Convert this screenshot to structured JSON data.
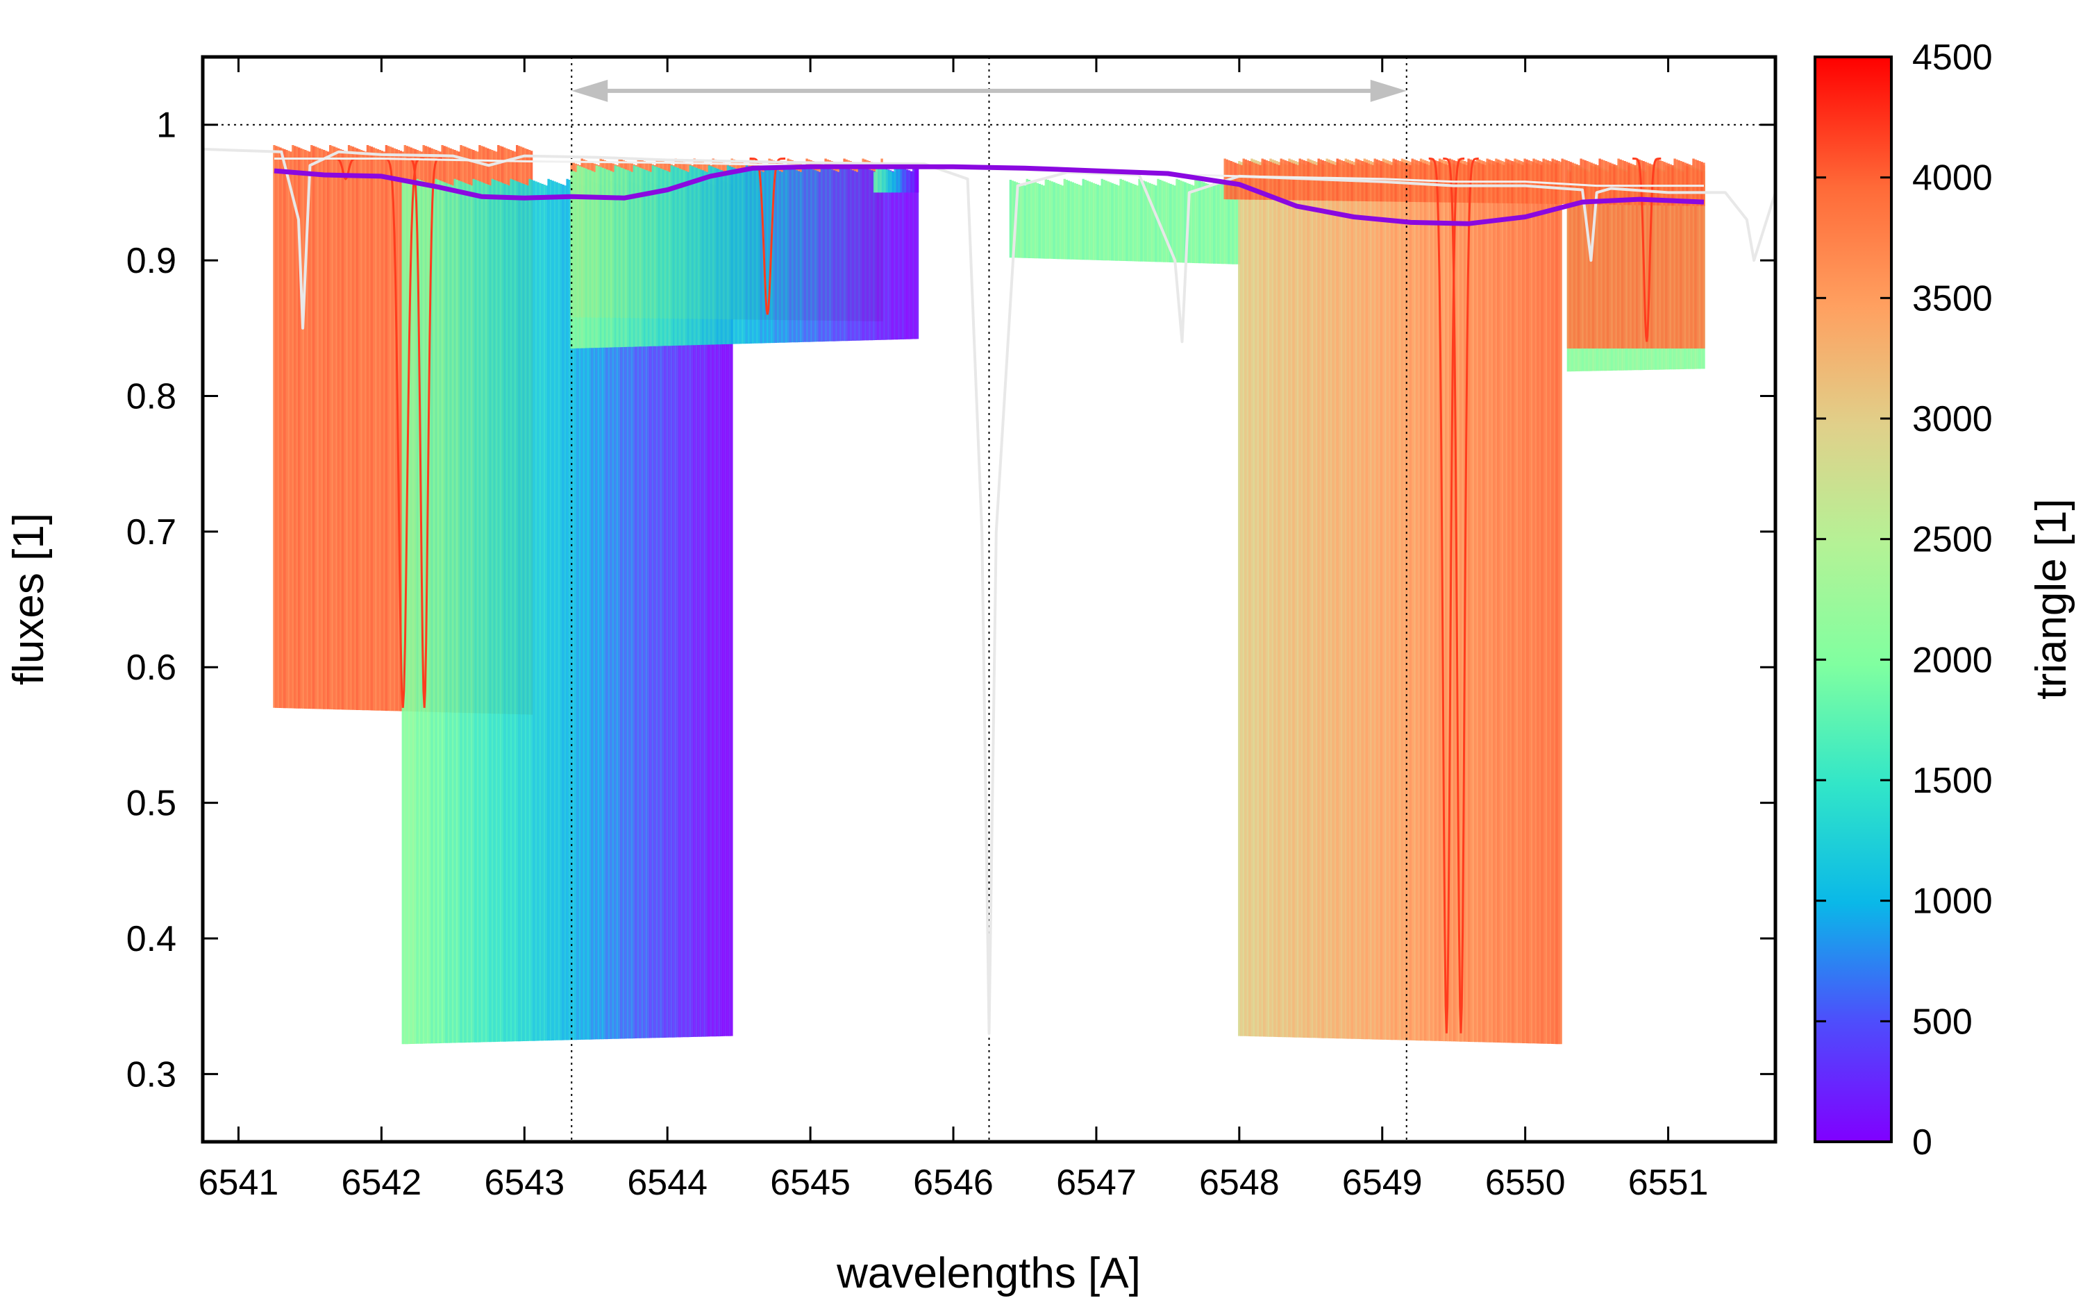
{
  "chart_data": {
    "type": "line",
    "xlabel": "wavelengths [A]",
    "ylabel": "fluxes [1]",
    "colorbar_label": "triangle [1]",
    "xlim": [
      6540.75,
      6551.75
    ],
    "ylim": [
      0.25,
      1.05
    ],
    "x_ticks": [
      6541,
      6542,
      6543,
      6544,
      6545,
      6546,
      6547,
      6548,
      6549,
      6550,
      6551
    ],
    "y_ticks": [
      0.3,
      0.4,
      0.5,
      0.6,
      0.7,
      0.8,
      0.9,
      1
    ],
    "colorbar_range": [
      0,
      4500
    ],
    "colorbar_ticks": [
      0,
      500,
      1000,
      1500,
      2000,
      2500,
      3000,
      3500,
      4000,
      4500
    ],
    "colormap": "rainbow",
    "grid": false,
    "legend": "none",
    "colors": {
      "model_red": "#ff3c1e",
      "model_orange": "#ff7840",
      "model_green": "#80ffa0",
      "mean_line": "#8a08e0",
      "observed": "#e8e8e8",
      "arrow": "#c0c0c0"
    },
    "reference_lines": {
      "horizontal_y": 1.0,
      "vertical_x": [
        6543.33,
        6546.25,
        6549.17
      ]
    },
    "range_arrow": {
      "from": 6543.33,
      "to": 6549.17,
      "y": 1.025
    },
    "blocks": [
      {
        "x0": 6541.25,
        "x1": 6543.05,
        "y_top": 0.985,
        "y_bottom": 0.57,
        "y_end": 0.565,
        "triangle_start": 3900,
        "triangle_end": 3900
      },
      {
        "x0": 6542.15,
        "x1": 6544.45,
        "y_top": 0.96,
        "y_bottom": 0.322,
        "y_end": 0.328,
        "triangle_start": 2100,
        "triangle_end": 0
      },
      {
        "x0": 6543.33,
        "x1": 6545.5,
        "y_top": 0.975,
        "y_bottom": 0.858,
        "y_end": 0.855,
        "triangle_start": 3800,
        "triangle_end": 3800
      },
      {
        "x0": 6543.33,
        "x1": 6545.75,
        "y_top": 0.97,
        "y_bottom": 0.835,
        "y_end": 0.842,
        "triangle_start": 2100,
        "triangle_end": 0
      },
      {
        "x0": 6545.45,
        "x1": 6545.75,
        "y_top": 0.97,
        "y_bottom": 0.95,
        "y_end": 0.95,
        "triangle_start": 1900,
        "triangle_end": 0
      },
      {
        "x0": 6546.4,
        "x1": 6548.0,
        "y_top": 0.96,
        "y_bottom": 0.902,
        "y_end": 0.897,
        "triangle_start": 2000,
        "triangle_end": 2000
      },
      {
        "x0": 6548.0,
        "x1": 6550.25,
        "y_top": 0.975,
        "y_bottom": 0.328,
        "y_end": 0.322,
        "triangle_start": 3000,
        "triangle_end": 3900
      },
      {
        "x0": 6550.3,
        "x1": 6551.25,
        "y_top": 0.97,
        "y_bottom": 0.818,
        "y_end": 0.82,
        "triangle_start": 2100,
        "triangle_end": 2100
      },
      {
        "x0": 6550.3,
        "x1": 6551.25,
        "y_top": 0.97,
        "y_bottom": 0.835,
        "y_end": 0.835,
        "triangle_start": 3800,
        "triangle_end": 3800
      },
      {
        "x0": 6547.9,
        "x1": 6551.25,
        "y_top": 0.975,
        "y_bottom": 0.945,
        "y_end": 0.94,
        "triangle_start": 3900,
        "triangle_end": 3900
      }
    ],
    "absorption_lines": [
      {
        "x": 6541.75,
        "depth": 0.96,
        "width": 0.04
      },
      {
        "x": 6542.15,
        "depth": 0.57,
        "width": 0.06
      },
      {
        "x": 6542.3,
        "depth": 0.57,
        "width": 0.05
      },
      {
        "x": 6544.7,
        "depth": 0.86,
        "width": 0.05
      },
      {
        "x": 6549.45,
        "depth": 0.33,
        "width": 0.05
      },
      {
        "x": 6549.55,
        "depth": 0.33,
        "width": 0.05
      },
      {
        "x": 6550.85,
        "depth": 0.84,
        "width": 0.04
      }
    ],
    "mean_series": {
      "name": "",
      "x": [
        6541.25,
        6541.6,
        6542.0,
        6542.4,
        6542.7,
        6543.0,
        6543.33,
        6543.7,
        6544.0,
        6544.3,
        6544.6,
        6545.0,
        6545.5,
        6546.0,
        6546.5,
        6547.0,
        6547.5,
        6548.0,
        6548.4,
        6548.8,
        6549.2,
        6549.6,
        6550.0,
        6550.4,
        6550.8,
        6551.25
      ],
      "y": [
        0.966,
        0.963,
        0.962,
        0.954,
        0.947,
        0.946,
        0.947,
        0.946,
        0.952,
        0.962,
        0.968,
        0.969,
        0.969,
        0.969,
        0.968,
        0.966,
        0.964,
        0.956,
        0.94,
        0.932,
        0.928,
        0.927,
        0.932,
        0.943,
        0.945,
        0.943
      ]
    },
    "observed_series": {
      "name": "",
      "x": [
        6540.75,
        6541.0,
        6541.3,
        6541.42,
        6541.45,
        6541.5,
        6541.7,
        6542.0,
        6542.5,
        6542.75,
        6543.0,
        6543.5,
        6544.0,
        6545.0,
        6545.8,
        6546.1,
        6546.2,
        6546.25,
        6546.3,
        6546.45,
        6546.8,
        6547.3,
        6547.55,
        6547.6,
        6547.65,
        6548.0,
        6548.5,
        6549.0,
        6549.5,
        6550.0,
        6550.4,
        6550.46,
        6550.5,
        6550.6,
        6551.0,
        6551.4,
        6551.55,
        6551.6,
        6551.75
      ],
      "y": [
        0.982,
        0.981,
        0.98,
        0.93,
        0.85,
        0.97,
        0.98,
        0.978,
        0.977,
        0.97,
        0.977,
        0.976,
        0.974,
        0.972,
        0.971,
        0.96,
        0.7,
        0.33,
        0.7,
        0.955,
        0.965,
        0.963,
        0.9,
        0.84,
        0.95,
        0.962,
        0.96,
        0.958,
        0.955,
        0.955,
        0.952,
        0.9,
        0.95,
        0.953,
        0.95,
        0.95,
        0.93,
        0.9,
        0.95
      ]
    },
    "observed_series_2": {
      "name": "",
      "x": [
        6541.25,
        6542.0,
        6543.0,
        6544.0,
        6545.0,
        6546.0,
        6547.0,
        6548.0,
        6549.0,
        6549.5,
        6550.0,
        6550.5,
        6551.0,
        6551.25
      ],
      "y": [
        0.975,
        0.975,
        0.973,
        0.972,
        0.97,
        0.968,
        0.965,
        0.962,
        0.96,
        0.958,
        0.958,
        0.955,
        0.955,
        0.955
      ]
    }
  }
}
